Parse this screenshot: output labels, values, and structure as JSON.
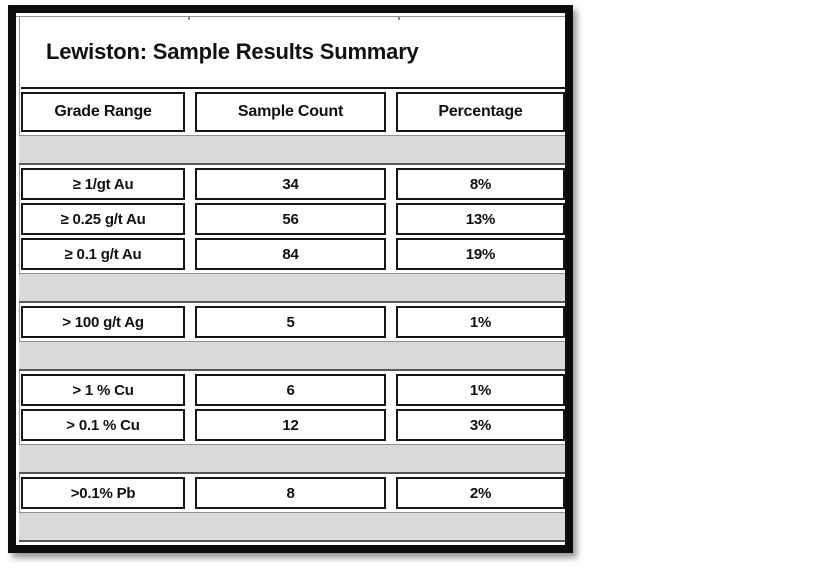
{
  "table": {
    "title": "Lewiston: Sample Results Summary",
    "headers": [
      "Grade Range",
      "Sample Count",
      "Percentage"
    ],
    "rows": [
      {
        "grade": "≥ 1/gt Au",
        "count": "34",
        "pct": "8%"
      },
      {
        "grade": "≥ 0.25 g/t Au",
        "count": "56",
        "pct": "13%"
      },
      {
        "grade": "≥ 0.1 g/t Au",
        "count": "84",
        "pct": "19%"
      },
      {
        "grade": "> 100 g/t Ag",
        "count": "5",
        "pct": "1%"
      },
      {
        "grade": "> 1 % Cu",
        "count": "6",
        "pct": "1%"
      },
      {
        "grade": "> 0.1 % Cu",
        "count": "12",
        "pct": "3%"
      },
      {
        "grade": ">0.1% Pb",
        "count": "8",
        "pct": "2%"
      }
    ]
  },
  "colors": {
    "frame": "#0c0c0c",
    "cell_border": "#151515",
    "band_fill": "#d9d9d9",
    "band_border_top": "#8f8f8f",
    "band_border_bottom": "#575757",
    "text": "#111111"
  },
  "chart_data": {
    "type": "table",
    "title": "Lewiston: Sample Results Summary",
    "columns": [
      "Grade Range",
      "Sample Count",
      "Percentage"
    ],
    "cells": [
      [
        "≥ 1/gt Au",
        34,
        "8%"
      ],
      [
        "≥ 0.25 g/t Au",
        56,
        "13%"
      ],
      [
        "≥ 0.1 g/t Au",
        84,
        "19%"
      ],
      [
        "> 100 g/t Ag",
        5,
        "1%"
      ],
      [
        "> 1 % Cu",
        6,
        "1%"
      ],
      [
        "> 0.1 % Cu",
        12,
        "3%"
      ],
      [
        ">0.1% Pb",
        8,
        "2%"
      ]
    ]
  }
}
